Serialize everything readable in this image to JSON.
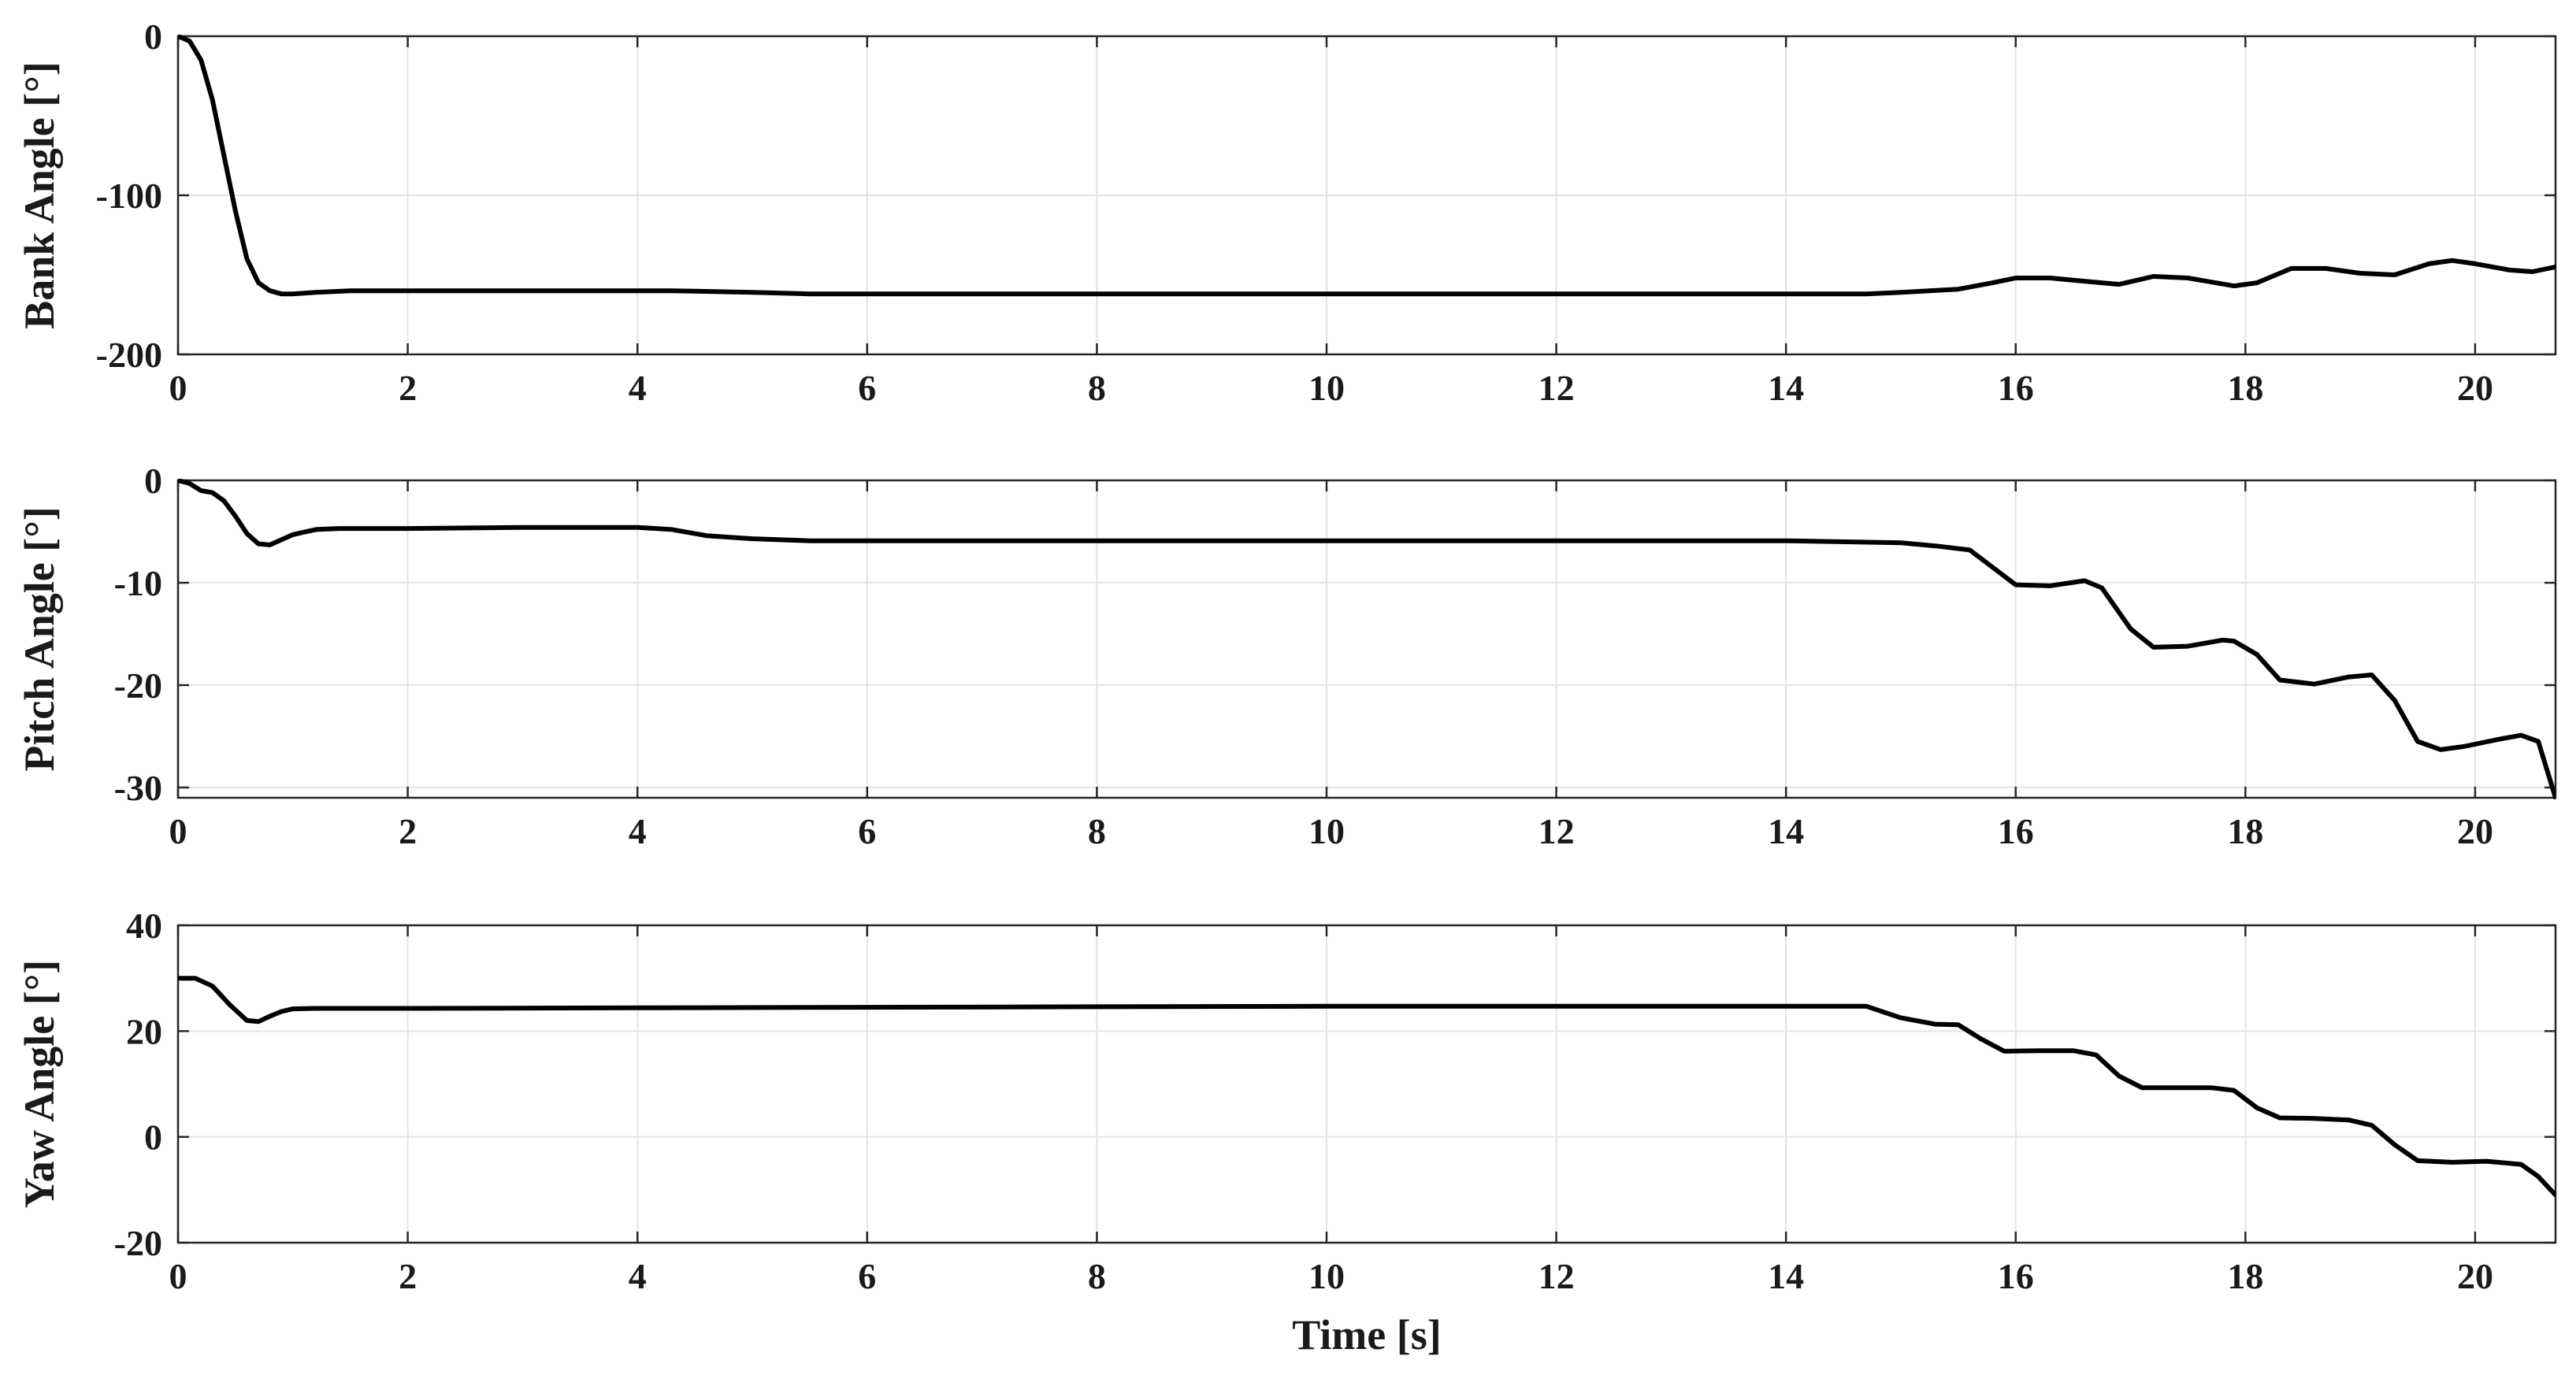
{
  "colors": {
    "line": "#000000",
    "grid": "#e3e3e3",
    "axes": "#262626",
    "text": "#1a1a1a"
  },
  "chart_data": [
    {
      "type": "line",
      "ylabel": "Bank Angle [°]",
      "xlabel": "",
      "xlim": [
        0,
        20.7
      ],
      "ylim": [
        -200,
        0
      ],
      "xticks": [
        0,
        2,
        4,
        6,
        8,
        10,
        12,
        14,
        16,
        18,
        20
      ],
      "yticks": [
        -200,
        -100,
        0
      ],
      "grid": true,
      "series": [
        {
          "x": [
            0,
            0.1,
            0.2,
            0.3,
            0.4,
            0.5,
            0.6,
            0.7,
            0.8,
            0.9,
            1.0,
            1.2,
            1.5,
            2,
            3,
            4,
            4.3,
            5,
            5.5,
            6,
            8,
            10,
            12,
            14,
            14.7,
            15,
            15.5,
            15.8,
            16,
            16.3,
            16.6,
            16.9,
            17.2,
            17.5,
            17.9,
            18.1,
            18.4,
            18.7,
            19.0,
            19.3,
            19.6,
            19.8,
            20.0,
            20.3,
            20.5,
            20.7
          ],
          "y": [
            0,
            -3,
            -15,
            -40,
            -75,
            -110,
            -140,
            -155,
            -160,
            -162,
            -162,
            -161,
            -160,
            -160,
            -160,
            -160,
            -160,
            -161,
            -162,
            -162,
            -162,
            -162,
            -162,
            -162,
            -162,
            -161,
            -159,
            -155,
            -152,
            -152,
            -154,
            -156,
            -151,
            -152,
            -157,
            -155,
            -146,
            -146,
            -149,
            -150,
            -143,
            -141,
            -143,
            -147,
            -148,
            -145
          ]
        }
      ]
    },
    {
      "type": "line",
      "ylabel": "Pitch Angle [°]",
      "xlabel": "",
      "xlim": [
        0,
        20.7
      ],
      "ylim": [
        -31,
        0
      ],
      "xticks": [
        0,
        2,
        4,
        6,
        8,
        10,
        12,
        14,
        16,
        18,
        20
      ],
      "yticks": [
        -30,
        -20,
        -10,
        0
      ],
      "grid": true,
      "series": [
        {
          "x": [
            0,
            0.1,
            0.2,
            0.3,
            0.4,
            0.5,
            0.6,
            0.7,
            0.8,
            0.9,
            1.0,
            1.2,
            1.4,
            2,
            3,
            4,
            4.3,
            4.6,
            5,
            5.5,
            6,
            8,
            10,
            12,
            14,
            15,
            15.3,
            15.6,
            15.8,
            16.0,
            16.3,
            16.6,
            16.75,
            17.0,
            17.2,
            17.5,
            17.8,
            17.9,
            18.1,
            18.3,
            18.6,
            18.9,
            19.1,
            19.3,
            19.5,
            19.7,
            19.9,
            20.2,
            20.4,
            20.55,
            20.7
          ],
          "y": [
            0,
            -0.3,
            -1.0,
            -1.2,
            -2.0,
            -3.5,
            -5.2,
            -6.2,
            -6.3,
            -5.8,
            -5.3,
            -4.8,
            -4.7,
            -4.7,
            -4.6,
            -4.6,
            -4.8,
            -5.4,
            -5.7,
            -5.9,
            -5.9,
            -5.9,
            -5.9,
            -5.9,
            -5.9,
            -6.1,
            -6.4,
            -6.8,
            -8.5,
            -10.2,
            -10.3,
            -9.8,
            -10.5,
            -14.5,
            -16.3,
            -16.2,
            -15.6,
            -15.7,
            -17.0,
            -19.5,
            -19.9,
            -19.2,
            -19.0,
            -21.5,
            -25.5,
            -26.3,
            -26.0,
            -25.3,
            -24.9,
            -25.5,
            -31.0
          ]
        }
      ]
    },
    {
      "type": "line",
      "ylabel": "Yaw Angle [°]",
      "xlabel": "Time [s]",
      "xlim": [
        0,
        20.7
      ],
      "ylim": [
        -20,
        40
      ],
      "xticks": [
        0,
        2,
        4,
        6,
        8,
        10,
        12,
        14,
        16,
        18,
        20
      ],
      "yticks": [
        -20,
        0,
        20,
        40
      ],
      "grid": true,
      "series": [
        {
          "x": [
            0,
            0.15,
            0.3,
            0.45,
            0.6,
            0.7,
            0.8,
            0.9,
            1.0,
            1.2,
            2,
            4,
            6,
            8,
            10,
            12,
            14,
            14.7,
            15.0,
            15.3,
            15.5,
            15.7,
            15.9,
            16.2,
            16.5,
            16.7,
            16.9,
            17.1,
            17.4,
            17.7,
            17.9,
            18.1,
            18.3,
            18.6,
            18.9,
            19.1,
            19.3,
            19.5,
            19.8,
            20.1,
            20.4,
            20.55,
            20.7
          ],
          "y": [
            30,
            30,
            28.5,
            25,
            22,
            21.8,
            22.8,
            23.7,
            24.2,
            24.3,
            24.3,
            24.4,
            24.5,
            24.6,
            24.7,
            24.7,
            24.7,
            24.7,
            22.5,
            21.3,
            21.2,
            18.5,
            16.2,
            16.3,
            16.3,
            15.5,
            11.5,
            9.3,
            9.3,
            9.3,
            8.8,
            5.5,
            3.6,
            3.5,
            3.2,
            2.2,
            -1.5,
            -4.5,
            -4.8,
            -4.6,
            -5.2,
            -7.5,
            -11.0
          ]
        }
      ]
    }
  ]
}
